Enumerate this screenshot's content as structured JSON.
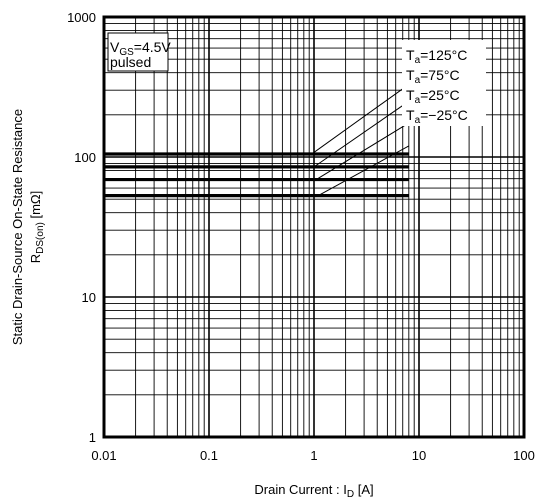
{
  "chart_data": {
    "type": "line",
    "xscale": "log",
    "yscale": "log",
    "xlim": [
      0.01,
      100
    ],
    "ylim": [
      1,
      1000
    ],
    "x_ticks": [
      "0.01",
      "0.1",
      "1",
      "10",
      "100"
    ],
    "y_ticks": [
      "1",
      "10",
      "100",
      "1000"
    ],
    "xlabel": {
      "main": "Drain Current :  I",
      "sub": "D",
      "unit": " [A]"
    },
    "ylabel": {
      "line1": "Static Drain-Source On-State Resistance",
      "main": "R",
      "sub": "DS(on)",
      "unit": " [mΩ]"
    },
    "conditions": {
      "vgs_main": "V",
      "vgs_sub": "GS",
      "vgs_value": "=4.5V",
      "mode": "pulsed"
    },
    "grid": true,
    "series": [
      {
        "name": "Ta=125°C",
        "label_main": "T",
        "label_sub": "a",
        "label_value": "=125°C",
        "points": [
          [
            0.01,
            105
          ],
          [
            0.95,
            105
          ],
          [
            8,
            330
          ]
        ]
      },
      {
        "name": "Ta=75°C",
        "label_main": "T",
        "label_sub": "a",
        "label_value": "=75°C",
        "points": [
          [
            0.01,
            85
          ],
          [
            1.0,
            85
          ],
          [
            8,
            250
          ]
        ]
      },
      {
        "name": "Ta=25°C",
        "label_main": "T",
        "label_sub": "a",
        "label_value": "=25°C",
        "points": [
          [
            0.01,
            69
          ],
          [
            1.05,
            69
          ],
          [
            8,
            175
          ]
        ]
      },
      {
        "name": "Ta=-25°C",
        "label_main": "T",
        "label_sub": "a",
        "label_value": "=−25°C",
        "points": [
          [
            0.01,
            53
          ],
          [
            1.1,
            53
          ],
          [
            8,
            120
          ]
        ]
      }
    ]
  }
}
